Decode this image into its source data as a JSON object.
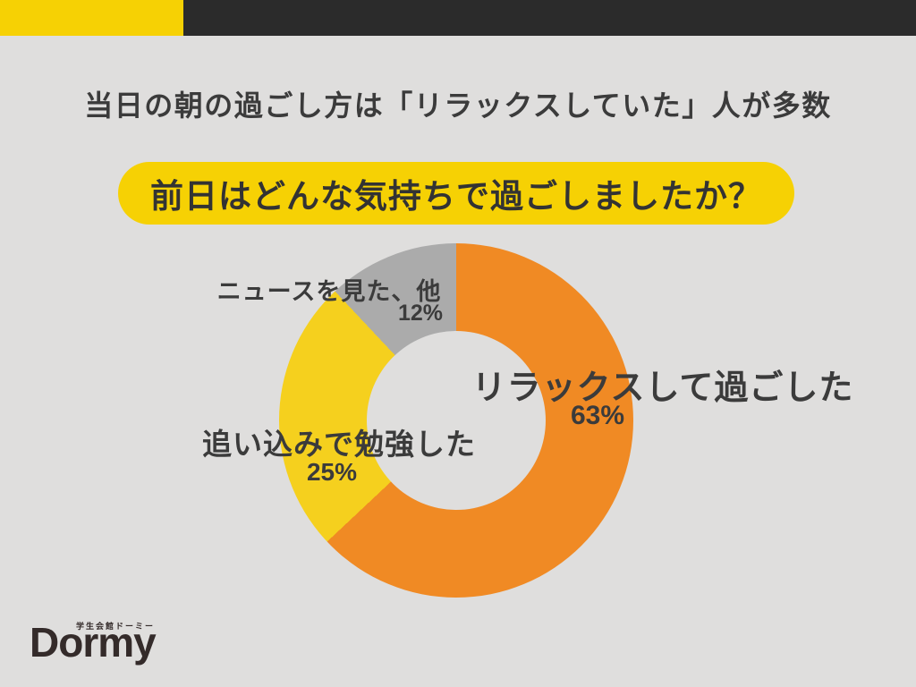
{
  "page": {
    "background_color": "#DFDEDD",
    "top_bar": {
      "yellow_color": "#F6D104",
      "black_color": "#2B2B2B"
    }
  },
  "header": {
    "title": "当日の朝の過ごし方は「リラックスしていた」人が多数",
    "question_badge": "前日はどんな気持ちで過ごしましたか？",
    "badge_color": "#F6D104"
  },
  "chart_data": {
    "type": "pie",
    "subtype": "donut",
    "title": "前日はどんな気持ちで過ごしましたか？",
    "start_angle_deg": 0,
    "direction": "clockwise",
    "hole_ratio": 0.5,
    "hole_color": "#DFDEDD",
    "legend_position": "labels-on-chart",
    "segments": [
      {
        "label": "リラックスして過ごした",
        "value": 63,
        "pct_label": "63%",
        "color": "#F08A24"
      },
      {
        "label": "追い込みで勉強した",
        "value": 25,
        "pct_label": "25%",
        "color": "#F5D01E"
      },
      {
        "label": "ニュースを見た、他",
        "value": 12,
        "pct_label": "12%",
        "color": "#ABABAB"
      }
    ]
  },
  "footer": {
    "logo_sub": "学生会館ドーミー",
    "logo_text": "Dormy",
    "logo_color": "#342B2A"
  }
}
